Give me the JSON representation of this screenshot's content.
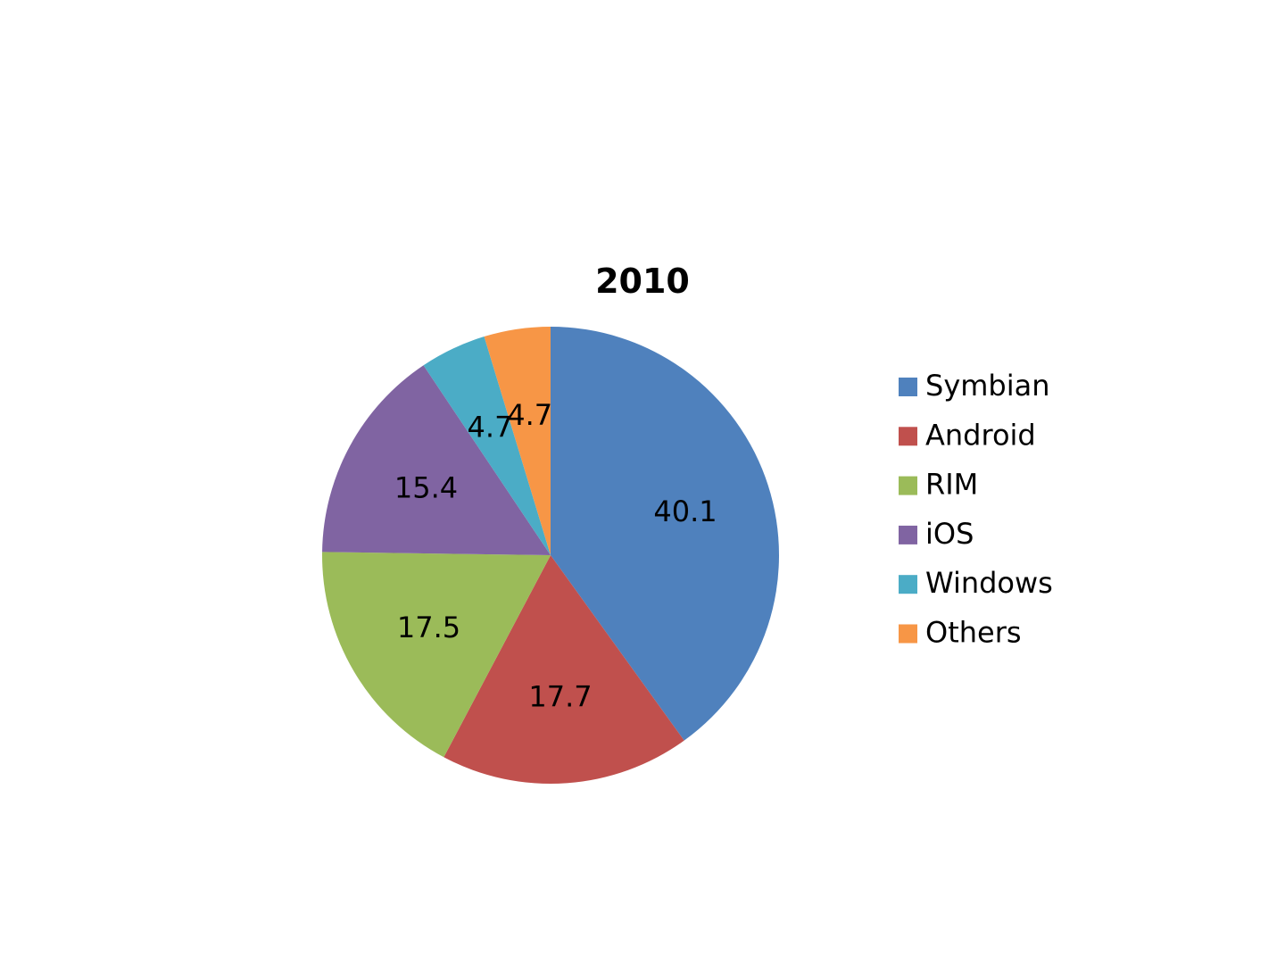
{
  "chart_data": {
    "type": "pie",
    "title": "2010",
    "categories": [
      "Symbian",
      "Android",
      "RIM",
      "iOS",
      "Windows",
      "Others"
    ],
    "values": [
      40.1,
      17.7,
      17.5,
      15.4,
      4.7,
      4.7
    ],
    "colors": [
      "#4F81BD",
      "#C0504D",
      "#9BBB59",
      "#8064A2",
      "#4BACC6",
      "#F79646"
    ],
    "data_labels": [
      "40.1",
      "17.7",
      "17.5",
      "15.4",
      "4.7",
      "4.7"
    ],
    "start_angle": "12 o'clock",
    "direction": "clockwise",
    "legend_position": "right"
  }
}
